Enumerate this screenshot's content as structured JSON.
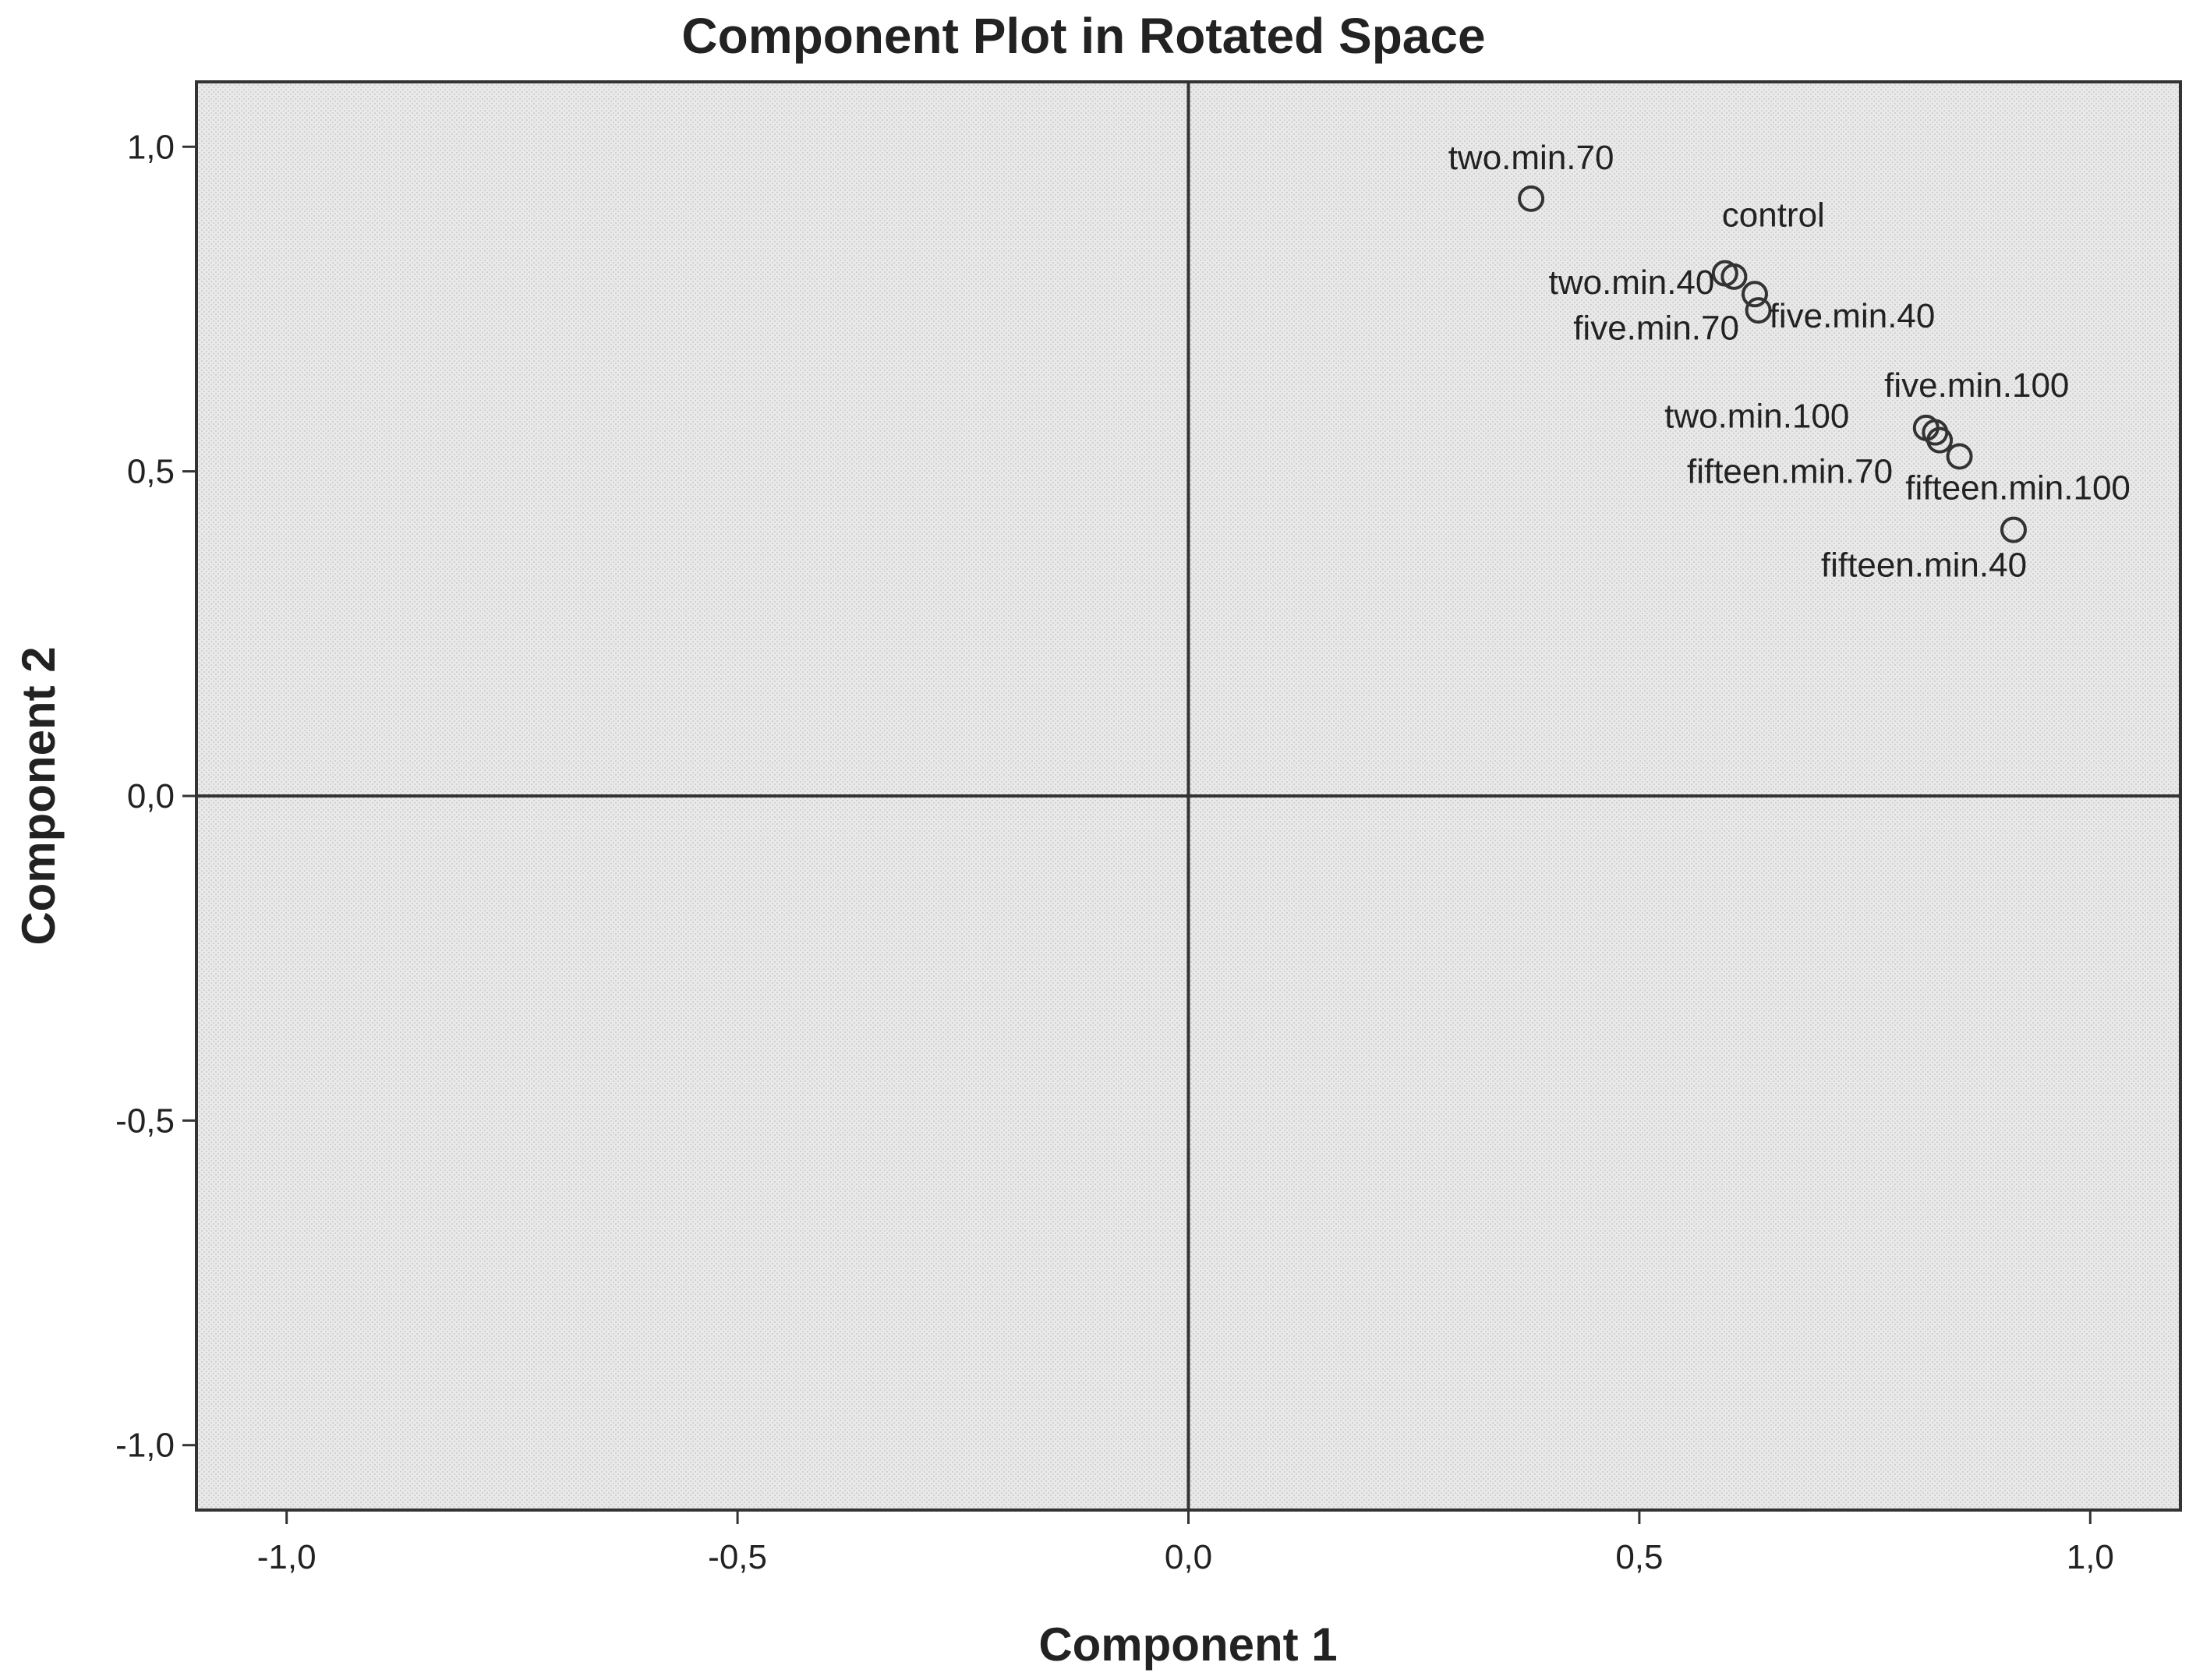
{
  "chart_data": {
    "type": "scatter",
    "title": "Component Plot in Rotated Space",
    "xlabel": "Component 1",
    "ylabel": "Component 2",
    "xlim": [
      -1.1,
      1.1
    ],
    "ylim": [
      -1.1,
      1.1
    ],
    "x_ticks": [
      -1.0,
      -0.5,
      0.0,
      0.5,
      1.0
    ],
    "x_tick_labels": [
      "-1,0",
      "-0,5",
      "0,0",
      "0,5",
      "1,0"
    ],
    "y_ticks": [
      1.0,
      0.5,
      0.0,
      -0.5,
      -1.0
    ],
    "y_tick_labels": [
      "1,0",
      "0,5",
      "0,0",
      "-0,5",
      "-1,0"
    ],
    "grid": false,
    "reference_lines": {
      "x": 0,
      "y": 0
    },
    "colors": {
      "plot_background": "#e9e9e9",
      "frame": "#333333",
      "marker": "#333333"
    },
    "points": [
      {
        "label": "two.min.70",
        "x": 0.38,
        "y": 0.92
      },
      {
        "label": "control",
        "x": 0.595,
        "y": 0.805
      },
      {
        "label": "two.min.40",
        "x": 0.605,
        "y": 0.8
      },
      {
        "label": "five.min.70",
        "x": 0.628,
        "y": 0.773
      },
      {
        "label": "five.min.40",
        "x": 0.632,
        "y": 0.748
      },
      {
        "label": "five.min.100",
        "x": 0.818,
        "y": 0.567
      },
      {
        "label": "two.min.100",
        "x": 0.828,
        "y": 0.56
      },
      {
        "label": "fifteen.min.70",
        "x": 0.833,
        "y": 0.548
      },
      {
        "label": "fifteen.min.100",
        "x": 0.855,
        "y": 0.523
      },
      {
        "label": "fifteen.min.40",
        "x": 0.915,
        "y": 0.41
      }
    ]
  }
}
